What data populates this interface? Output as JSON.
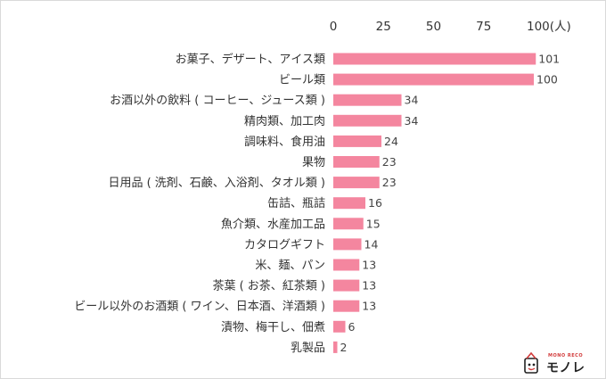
{
  "chart_data": {
    "type": "bar",
    "orientation": "horizontal",
    "categories": [
      "お菓子、デザート、アイス類",
      "ビール類",
      "お酒以外の飲料 ( コーヒー、ジュース類 )",
      "精肉類、加工肉",
      "調味料、食用油",
      "果物",
      "日用品 ( 洗剤、石鹸、入浴剤、タオル類 )",
      "缶詰、瓶詰",
      "魚介類、水産加工品",
      "カタログギフト",
      "米、麺、パン",
      "茶葉 ( お茶、紅茶類 )",
      "ビール以外のお酒類 ( ワイン、日本酒、洋酒類 )",
      "漬物、梅干し、佃煮",
      "乳製品"
    ],
    "values": [
      101,
      100,
      34,
      34,
      24,
      23,
      23,
      16,
      15,
      14,
      13,
      13,
      13,
      6,
      2
    ],
    "xlim": [
      0,
      100
    ],
    "ticks": [
      "0",
      "25",
      "50",
      "75",
      "100(人)"
    ],
    "bar_color": "#f4869f",
    "grid": false
  },
  "logo": {
    "tagline": "MONO RECO",
    "wordmark": "モノレコ"
  }
}
